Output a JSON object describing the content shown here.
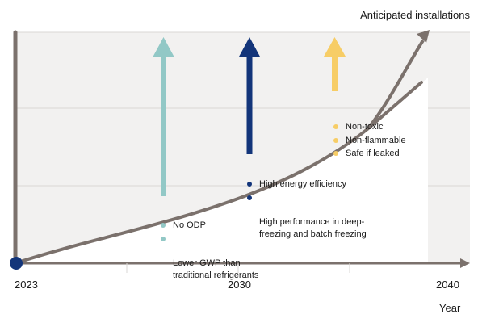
{
  "y_axis_label": "Anticipated installations",
  "x_axis_label": "Year",
  "x_ticks": [
    "2023",
    "2030",
    "2040"
  ],
  "colors": {
    "curve": "#7b716c",
    "fill": "#f2f1f0",
    "grid": "#d9d7d4",
    "origin": "#13357a",
    "teal": "#92c8c6",
    "navy": "#13357a",
    "yellow": "#f7cd66"
  },
  "groups": [
    {
      "color": "#92c8c6",
      "items": [
        "No ODP",
        "Lower GWP than\ntraditional refrigerants"
      ]
    },
    {
      "color": "#13357a",
      "items": [
        "High energy efficiency",
        "High performance in deep-\nfreezing and batch freezing"
      ]
    },
    {
      "color": "#f7cd66",
      "items": [
        "Non-toxic",
        "Non-flammable",
        "Safe if leaked"
      ]
    }
  ]
}
